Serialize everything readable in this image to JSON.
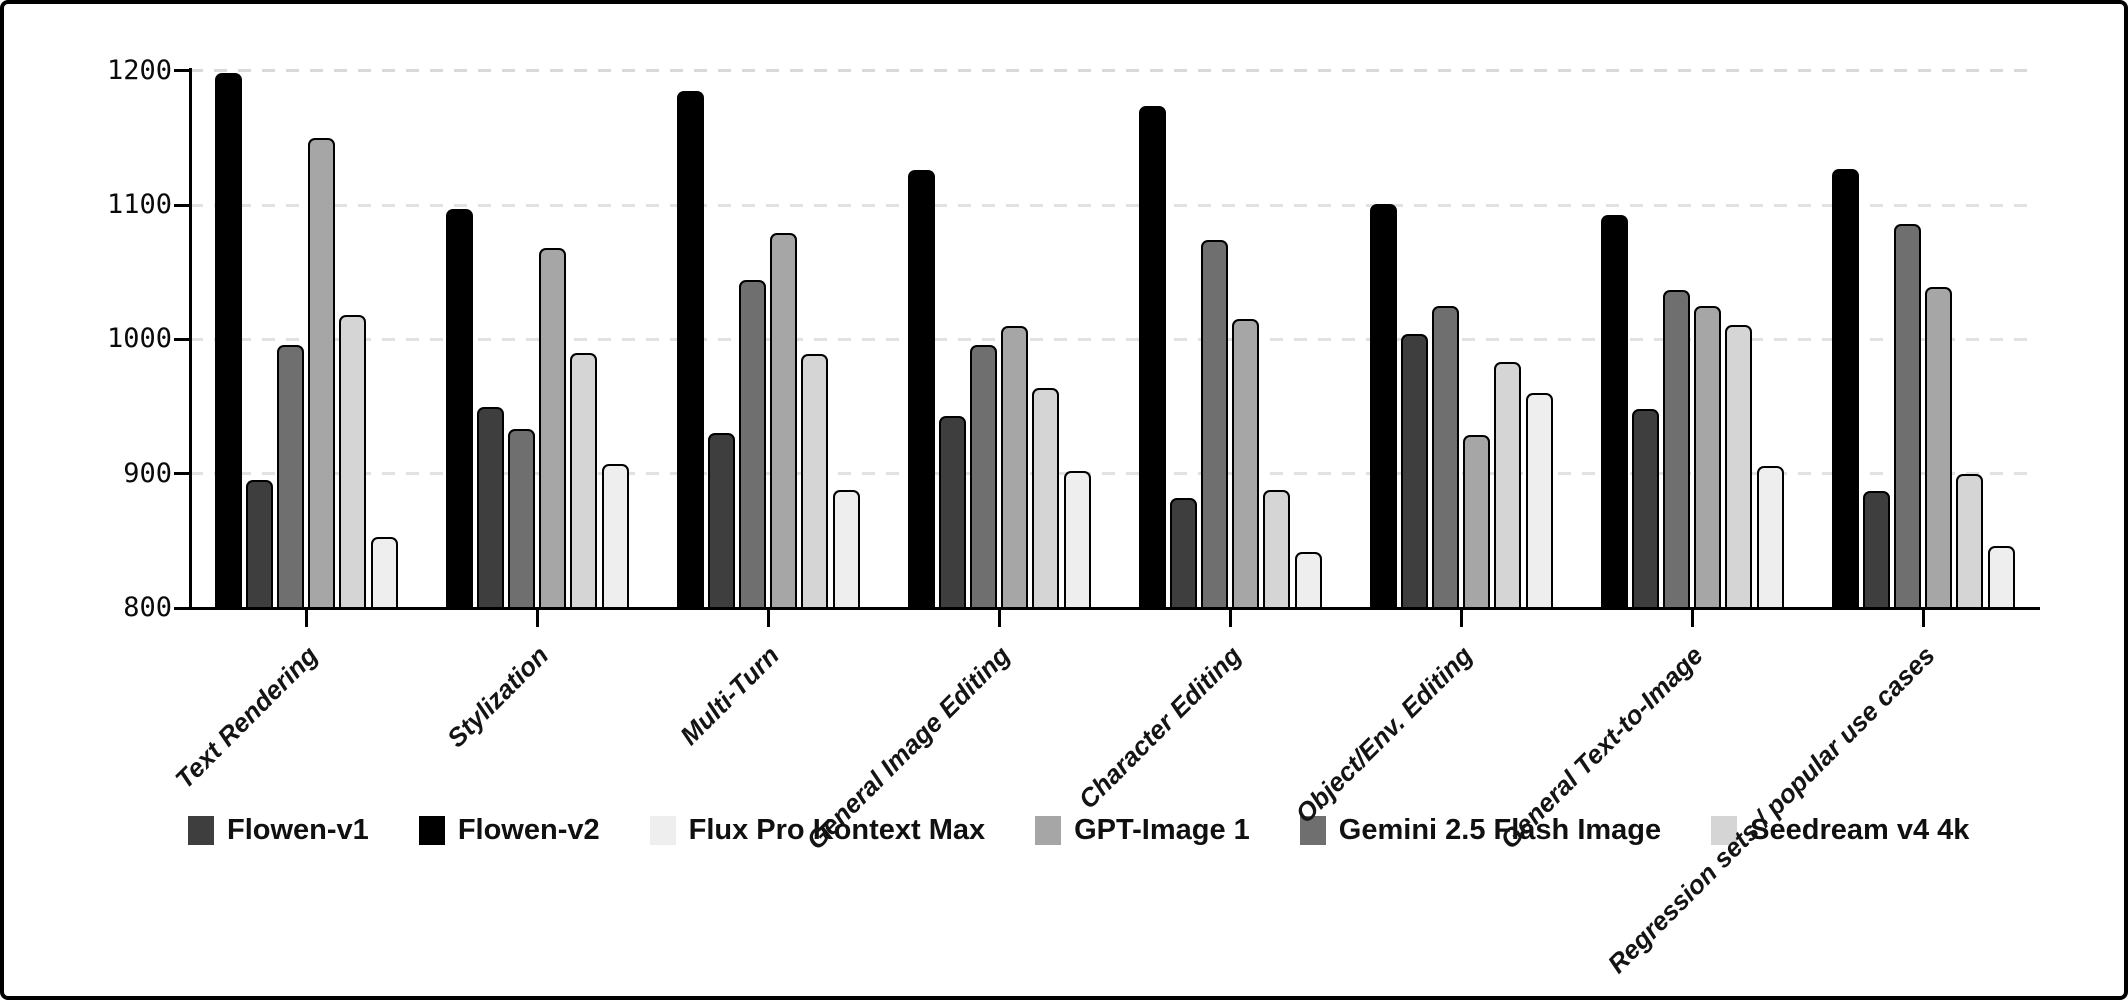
{
  "chart_data": {
    "type": "bar",
    "title": "",
    "xlabel": "",
    "ylabel": "",
    "ylim": [
      800,
      1215
    ],
    "y_ticks": [
      800,
      900,
      1000,
      1100,
      1200
    ],
    "grid": "dashed horizontal gridlines at 900-1200, legend below axis",
    "gridline_color": "#d9d9d9",
    "axis_color": "#000000",
    "categories": [
      "Text Rendering",
      "Stylization",
      "Multi-Turn",
      "General Image Editing",
      "Character Editing",
      "Object/Env. Editing",
      "General Text-to-Image",
      "Regression sets / popular use cases"
    ],
    "series": [
      {
        "name": "Flowen-v2",
        "color": "#000000",
        "pattern": "solid",
        "values": [
          1198,
          1097,
          1185,
          1126,
          1174,
          1101,
          1093,
          1127
        ]
      },
      {
        "name": "Flowen-v1",
        "color": "#3e3e3e",
        "pattern": "solid",
        "values": [
          895,
          950,
          930,
          943,
          882,
          1004,
          948,
          887
        ]
      },
      {
        "name": "Gemini 2.5 Flash Image",
        "color": "#6f6f6f",
        "pattern": "solid",
        "values": [
          996,
          933,
          1044,
          996,
          1074,
          1025,
          1037,
          1086
        ]
      },
      {
        "name": "GPT-Image 1",
        "color": "#a6a6a6",
        "pattern": "solid",
        "values": [
          1150,
          1068,
          1079,
          1010,
          1015,
          929,
          1025,
          1039
        ]
      },
      {
        "name": "Seedream v4 4k",
        "color": "#d5d5d5",
        "pattern": "solid",
        "values": [
          1018,
          990,
          989,
          964,
          888,
          983,
          1011,
          900
        ]
      },
      {
        "name": "Flux Pro Kontext Max",
        "color": "#eeeeee",
        "pattern": "dots",
        "values": [
          853,
          907,
          888,
          902,
          842,
          960,
          906,
          846
        ]
      }
    ],
    "legend_order": [
      "Flowen-v1",
      "Flowen-v2",
      "Flux Pro Kontext Max",
      "GPT-Image 1",
      "Gemini 2.5 Flash Image",
      "Seedream v4 4k"
    ],
    "legend_position": "bottom-left row"
  }
}
